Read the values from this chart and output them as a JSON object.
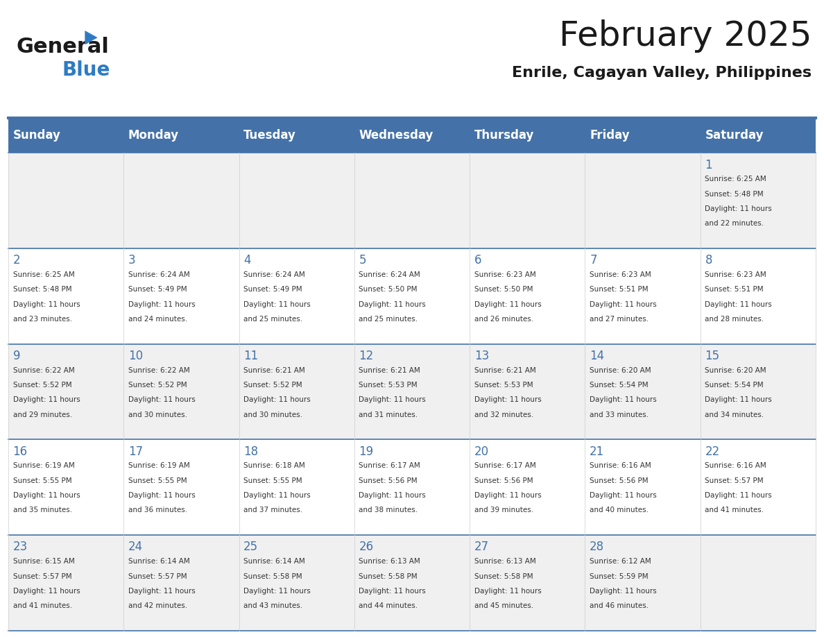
{
  "title": "February 2025",
  "subtitle": "Enrile, Cagayan Valley, Philippines",
  "header_bg": "#4472A8",
  "header_text": "#FFFFFF",
  "odd_row_bg": "#F0F0F0",
  "even_row_bg": "#FFFFFF",
  "day_headers": [
    "Sunday",
    "Monday",
    "Tuesday",
    "Wednesday",
    "Thursday",
    "Friday",
    "Saturday"
  ],
  "days": [
    {
      "day": 1,
      "col": 6,
      "row": 0,
      "sunrise": "6:25 AM",
      "sunset": "5:48 PM",
      "daylight": "11 hours\nand 22 minutes."
    },
    {
      "day": 2,
      "col": 0,
      "row": 1,
      "sunrise": "6:25 AM",
      "sunset": "5:48 PM",
      "daylight": "11 hours\nand 23 minutes."
    },
    {
      "day": 3,
      "col": 1,
      "row": 1,
      "sunrise": "6:24 AM",
      "sunset": "5:49 PM",
      "daylight": "11 hours\nand 24 minutes."
    },
    {
      "day": 4,
      "col": 2,
      "row": 1,
      "sunrise": "6:24 AM",
      "sunset": "5:49 PM",
      "daylight": "11 hours\nand 25 minutes."
    },
    {
      "day": 5,
      "col": 3,
      "row": 1,
      "sunrise": "6:24 AM",
      "sunset": "5:50 PM",
      "daylight": "11 hours\nand 25 minutes."
    },
    {
      "day": 6,
      "col": 4,
      "row": 1,
      "sunrise": "6:23 AM",
      "sunset": "5:50 PM",
      "daylight": "11 hours\nand 26 minutes."
    },
    {
      "day": 7,
      "col": 5,
      "row": 1,
      "sunrise": "6:23 AM",
      "sunset": "5:51 PM",
      "daylight": "11 hours\nand 27 minutes."
    },
    {
      "day": 8,
      "col": 6,
      "row": 1,
      "sunrise": "6:23 AM",
      "sunset": "5:51 PM",
      "daylight": "11 hours\nand 28 minutes."
    },
    {
      "day": 9,
      "col": 0,
      "row": 2,
      "sunrise": "6:22 AM",
      "sunset": "5:52 PM",
      "daylight": "11 hours\nand 29 minutes."
    },
    {
      "day": 10,
      "col": 1,
      "row": 2,
      "sunrise": "6:22 AM",
      "sunset": "5:52 PM",
      "daylight": "11 hours\nand 30 minutes."
    },
    {
      "day": 11,
      "col": 2,
      "row": 2,
      "sunrise": "6:21 AM",
      "sunset": "5:52 PM",
      "daylight": "11 hours\nand 30 minutes."
    },
    {
      "day": 12,
      "col": 3,
      "row": 2,
      "sunrise": "6:21 AM",
      "sunset": "5:53 PM",
      "daylight": "11 hours\nand 31 minutes."
    },
    {
      "day": 13,
      "col": 4,
      "row": 2,
      "sunrise": "6:21 AM",
      "sunset": "5:53 PM",
      "daylight": "11 hours\nand 32 minutes."
    },
    {
      "day": 14,
      "col": 5,
      "row": 2,
      "sunrise": "6:20 AM",
      "sunset": "5:54 PM",
      "daylight": "11 hours\nand 33 minutes."
    },
    {
      "day": 15,
      "col": 6,
      "row": 2,
      "sunrise": "6:20 AM",
      "sunset": "5:54 PM",
      "daylight": "11 hours\nand 34 minutes."
    },
    {
      "day": 16,
      "col": 0,
      "row": 3,
      "sunrise": "6:19 AM",
      "sunset": "5:55 PM",
      "daylight": "11 hours\nand 35 minutes."
    },
    {
      "day": 17,
      "col": 1,
      "row": 3,
      "sunrise": "6:19 AM",
      "sunset": "5:55 PM",
      "daylight": "11 hours\nand 36 minutes."
    },
    {
      "day": 18,
      "col": 2,
      "row": 3,
      "sunrise": "6:18 AM",
      "sunset": "5:55 PM",
      "daylight": "11 hours\nand 37 minutes."
    },
    {
      "day": 19,
      "col": 3,
      "row": 3,
      "sunrise": "6:17 AM",
      "sunset": "5:56 PM",
      "daylight": "11 hours\nand 38 minutes."
    },
    {
      "day": 20,
      "col": 4,
      "row": 3,
      "sunrise": "6:17 AM",
      "sunset": "5:56 PM",
      "daylight": "11 hours\nand 39 minutes."
    },
    {
      "day": 21,
      "col": 5,
      "row": 3,
      "sunrise": "6:16 AM",
      "sunset": "5:56 PM",
      "daylight": "11 hours\nand 40 minutes."
    },
    {
      "day": 22,
      "col": 6,
      "row": 3,
      "sunrise": "6:16 AM",
      "sunset": "5:57 PM",
      "daylight": "11 hours\nand 41 minutes."
    },
    {
      "day": 23,
      "col": 0,
      "row": 4,
      "sunrise": "6:15 AM",
      "sunset": "5:57 PM",
      "daylight": "11 hours\nand 41 minutes."
    },
    {
      "day": 24,
      "col": 1,
      "row": 4,
      "sunrise": "6:14 AM",
      "sunset": "5:57 PM",
      "daylight": "11 hours\nand 42 minutes."
    },
    {
      "day": 25,
      "col": 2,
      "row": 4,
      "sunrise": "6:14 AM",
      "sunset": "5:58 PM",
      "daylight": "11 hours\nand 43 minutes."
    },
    {
      "day": 26,
      "col": 3,
      "row": 4,
      "sunrise": "6:13 AM",
      "sunset": "5:58 PM",
      "daylight": "11 hours\nand 44 minutes."
    },
    {
      "day": 27,
      "col": 4,
      "row": 4,
      "sunrise": "6:13 AM",
      "sunset": "5:58 PM",
      "daylight": "11 hours\nand 45 minutes."
    },
    {
      "day": 28,
      "col": 5,
      "row": 4,
      "sunrise": "6:12 AM",
      "sunset": "5:59 PM",
      "daylight": "11 hours\nand 46 minutes."
    }
  ],
  "num_rows": 5,
  "num_cols": 7,
  "logo_text_general": "General",
  "logo_text_blue": "Blue",
  "logo_color_general": "#1A1A1A",
  "logo_color_blue": "#2E7BC4",
  "logo_triangle_color": "#2E7BC4",
  "cell_text_color": "#333333",
  "day_number_color": "#4472A8",
  "border_color": "#4472A8",
  "header_divider_color": "#4472A8"
}
